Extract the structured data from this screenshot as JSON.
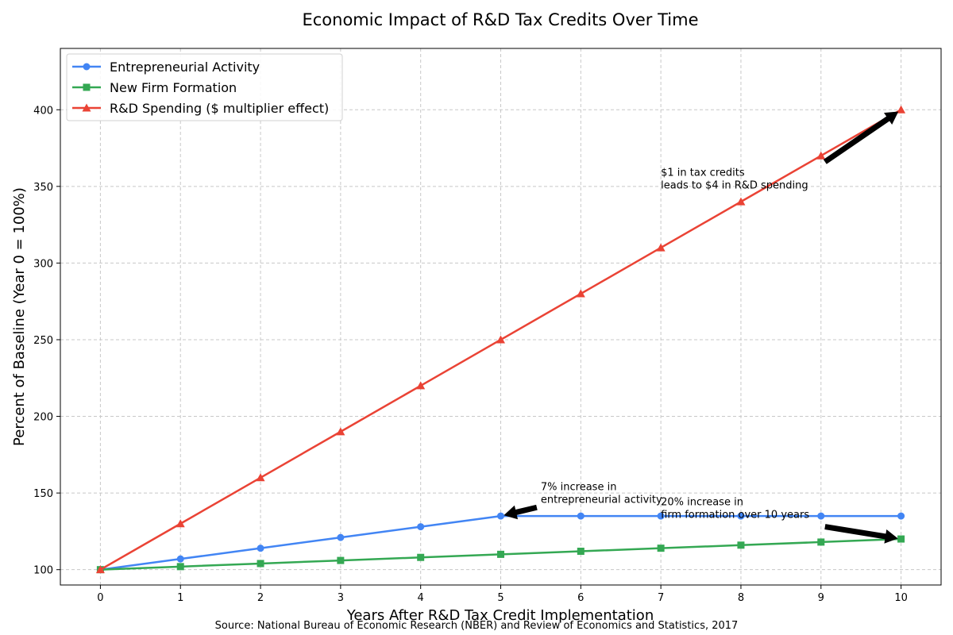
{
  "chart_data": {
    "type": "line",
    "title": "Economic Impact of R&D Tax Credits Over Time",
    "xlabel": "Years After R&D Tax Credit Implementation",
    "ylabel": "Percent of Baseline (Year 0 = 100%)",
    "source": "Source: National Bureau of Economic Research (NBER) and Review of Economics and Statistics, 2017",
    "x": [
      0,
      1,
      2,
      3,
      4,
      5,
      6,
      7,
      8,
      9,
      10
    ],
    "xlim": [
      -0.5,
      10.5
    ],
    "ylim": [
      90,
      440
    ],
    "xticks": [
      "0",
      "1",
      "2",
      "3",
      "4",
      "5",
      "6",
      "7",
      "8",
      "9",
      "10"
    ],
    "yticks": [
      100,
      150,
      200,
      250,
      300,
      350,
      400
    ],
    "grid": true,
    "legend_position": "top-left",
    "series": [
      {
        "name": "Entrepreneurial Activity",
        "color": "#4285f4",
        "marker": "circle",
        "values": [
          100,
          107,
          114,
          121,
          128,
          135,
          135,
          135,
          135,
          135,
          135
        ]
      },
      {
        "name": "New Firm Formation",
        "color": "#34a853",
        "marker": "square",
        "values": [
          100,
          102,
          104,
          106,
          108,
          110,
          112,
          114,
          116,
          118,
          120
        ]
      },
      {
        "name": "R&D Spending ($ multiplier effect)",
        "color": "#ea4335",
        "marker": "triangle",
        "values": [
          100,
          130,
          160,
          190,
          220,
          250,
          280,
          310,
          340,
          370,
          400
        ]
      }
    ],
    "annotations": [
      {
        "lines": [
          "7% increase in",
          "entrepreneurial activity"
        ],
        "text_at": [
          5.5,
          152
        ],
        "arrow_to": [
          5,
          135
        ]
      },
      {
        "lines": [
          "20% increase in",
          "firm formation over 10 years"
        ],
        "text_at": [
          7,
          142
        ],
        "arrow_to": [
          10,
          120
        ]
      },
      {
        "lines": [
          "$1 in tax credits",
          "leads to $4 in R&D spending"
        ],
        "text_at": [
          7,
          357
        ],
        "arrow_to": [
          10,
          400
        ]
      }
    ]
  }
}
